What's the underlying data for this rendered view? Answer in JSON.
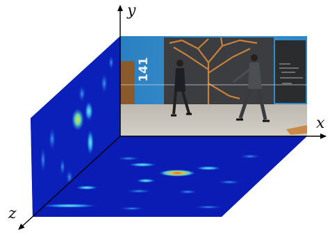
{
  "axes": {
    "x_label": "x",
    "y_label": "y",
    "z_label": "z"
  },
  "scene": {
    "room_number": "141"
  },
  "colors": {
    "heatmap_low": "#0b1fb8",
    "heatmap_mid": "#1f8fe0",
    "heatmap_high": "#d8c230",
    "heatmap_peak": "#e04a1a",
    "wall_blue": "#2a87c4",
    "floor": "#c9c6c0",
    "axis": "#000000"
  },
  "icons": {
    "arrow": "arrowhead"
  }
}
